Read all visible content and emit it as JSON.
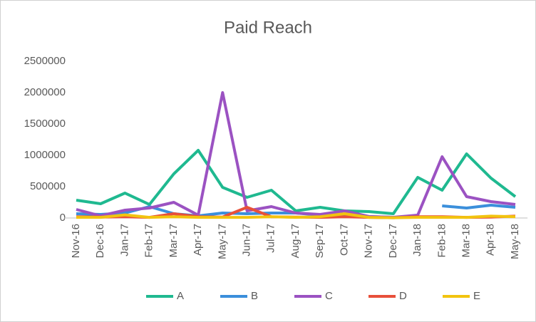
{
  "chart_data": {
    "type": "line",
    "title": "Paid Reach",
    "categories": [
      "Nov-16",
      "Dec-16",
      "Jan-17",
      "Feb-17",
      "Mar-17",
      "Apr-17",
      "May-17",
      "Jun-17",
      "Jul-17",
      "Aug-17",
      "Sep-17",
      "Oct-17",
      "Nov-17",
      "Dec-17",
      "Jan-18",
      "Feb-18",
      "Mar-18",
      "Apr-18",
      "May-18"
    ],
    "series": [
      {
        "name": "A",
        "color": "#1fb990",
        "values": [
          284000,
          227000,
          398000,
          216000,
          705000,
          1080000,
          489000,
          330000,
          443000,
          114000,
          170000,
          114000,
          102000,
          68000,
          648000,
          443000,
          1023000,
          636000,
          341000
        ]
      },
      {
        "name": "B",
        "color": "#3b8fdb",
        "values": [
          68000,
          57000,
          80000,
          182000,
          68000,
          34000,
          80000,
          68000,
          80000,
          80000,
          45000,
          57000,
          23000,
          11000,
          null,
          193000,
          159000,
          205000,
          170000
        ]
      },
      {
        "name": "C",
        "color": "#9b52c2",
        "values": [
          136000,
          34000,
          125000,
          159000,
          250000,
          45000,
          2000000,
          114000,
          182000,
          80000,
          57000,
          114000,
          23000,
          11000,
          45000,
          977000,
          341000,
          261000,
          216000
        ]
      },
      {
        "name": "D",
        "color": "#e8503a",
        "values": [
          20000,
          15000,
          20000,
          10000,
          68000,
          20000,
          15000,
          170000,
          20000,
          15000,
          10000,
          20000,
          10000,
          5000,
          20000,
          20000,
          10000,
          15000,
          30000
        ]
      },
      {
        "name": "E",
        "color": "#f2c40f",
        "values": [
          10000,
          10000,
          50000,
          10000,
          20000,
          10000,
          10000,
          10000,
          20000,
          10000,
          20000,
          68000,
          10000,
          5000,
          10000,
          10000,
          10000,
          30000,
          20000
        ]
      }
    ],
    "ylim": [
      0,
      2500000
    ],
    "yticks": [
      0,
      500000,
      1000000,
      1500000,
      2000000,
      2500000
    ],
    "grid": false,
    "legend": "bottom"
  }
}
